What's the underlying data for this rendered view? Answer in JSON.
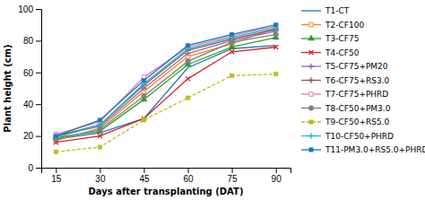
{
  "chart_data": {
    "type": "line",
    "xlabel": "Days after transplanting (DAT)",
    "ylabel": "Plant height (cm)",
    "x": [
      15,
      30,
      45,
      60,
      75,
      90
    ],
    "series": [
      {
        "name": "T1-CT",
        "values": [
          18,
          22,
          31,
          63,
          75,
          77
        ],
        "marker": "none",
        "line_style": "solid"
      },
      {
        "name": "T2-CF100",
        "values": [
          17,
          25,
          48,
          70,
          78,
          88
        ],
        "marker": "square-open",
        "line_style": "solid"
      },
      {
        "name": "T3-CF75",
        "values": [
          19,
          23,
          43,
          65,
          76,
          82
        ],
        "marker": "triangle",
        "line_style": "solid"
      },
      {
        "name": "T4-CF50",
        "values": [
          16,
          20,
          31,
          56,
          73,
          76
        ],
        "marker": "x",
        "line_style": "solid"
      },
      {
        "name": "T5-CF75+PM20",
        "values": [
          20,
          26,
          50,
          72,
          80,
          86
        ],
        "marker": "plus",
        "line_style": "solid"
      },
      {
        "name": "T6-CF75+RS3.0",
        "values": [
          20,
          27,
          52,
          74,
          81,
          87
        ],
        "marker": "plus",
        "line_style": "solid"
      },
      {
        "name": "T7-CF75+PHRD",
        "values": [
          21,
          29,
          57,
          76,
          83,
          89
        ],
        "marker": "square-open",
        "line_style": "solid"
      },
      {
        "name": "T8-CF50+PM3.0",
        "values": [
          18,
          24,
          45,
          67,
          79,
          84
        ],
        "marker": "circle",
        "line_style": "solid"
      },
      {
        "name": "T9-CF50+RS5.0",
        "values": [
          10,
          13,
          30,
          44,
          58,
          59
        ],
        "marker": "square",
        "line_style": "dashed"
      },
      {
        "name": "T10-CF50+PHRD",
        "values": [
          19,
          27,
          53,
          75,
          82,
          88
        ],
        "marker": "plus",
        "line_style": "solid"
      },
      {
        "name": "T11-PM3.0+RS5.0+PHRD",
        "values": [
          20,
          30,
          55,
          77,
          84,
          90
        ],
        "marker": "square",
        "line_style": "solid"
      }
    ],
    "xlim": [
      10,
      95
    ],
    "ylim": [
      0,
      100
    ],
    "xticks": [
      15,
      30,
      45,
      60,
      75,
      90
    ],
    "yticks": [
      0,
      20,
      40,
      60,
      80,
      100
    ],
    "grid": false,
    "legend": "right"
  }
}
